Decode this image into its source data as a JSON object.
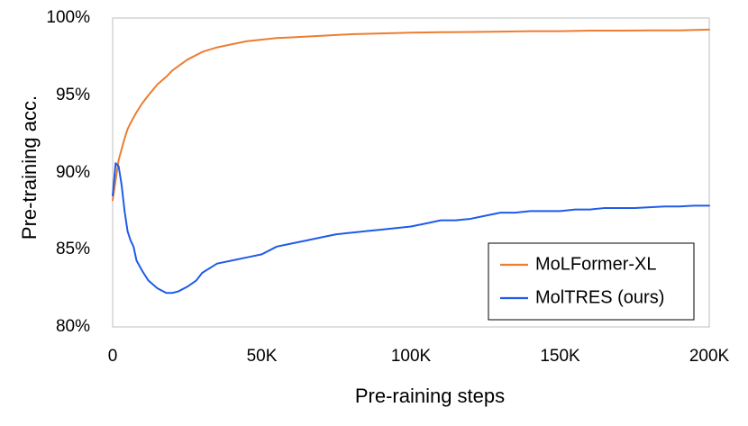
{
  "chart_data": {
    "type": "line",
    "title": "",
    "xlabel": "Pre-raining steps",
    "ylabel": "Pre-training  acc.",
    "xlim": [
      0,
      200000
    ],
    "ylim": [
      80,
      100
    ],
    "x_ticks": [
      0,
      50000,
      100000,
      150000,
      200000
    ],
    "x_tick_labels": [
      "0",
      "50K",
      "100K",
      "150K",
      "200K"
    ],
    "y_ticks": [
      80,
      85,
      90,
      95,
      100
    ],
    "y_tick_labels": [
      "80%",
      "85%",
      "90%",
      "95%",
      "100%"
    ],
    "grid": false,
    "legend_position": "bottom-right",
    "series": [
      {
        "name": "MoLFormer-XL",
        "color": "#ED7D31",
        "x": [
          0,
          1000,
          2000,
          3000,
          4000,
          5000,
          6000,
          8000,
          10000,
          12000,
          15000,
          18000,
          20000,
          25000,
          30000,
          35000,
          40000,
          45000,
          50000,
          55000,
          60000,
          70000,
          80000,
          90000,
          100000,
          110000,
          120000,
          130000,
          140000,
          150000,
          160000,
          170000,
          180000,
          190000,
          200000
        ],
        "y": [
          88.2,
          89.5,
          90.8,
          91.5,
          92.2,
          92.8,
          93.2,
          93.9,
          94.5,
          95.0,
          95.7,
          96.2,
          96.6,
          97.3,
          97.8,
          98.1,
          98.3,
          98.5,
          98.6,
          98.7,
          98.75,
          98.85,
          98.95,
          99.0,
          99.05,
          99.08,
          99.1,
          99.12,
          99.15,
          99.15,
          99.18,
          99.18,
          99.2,
          99.2,
          99.25
        ]
      },
      {
        "name": "MolTRES (ours)",
        "color": "#1F5BE8",
        "x": [
          0,
          1000,
          2000,
          3000,
          4000,
          5000,
          6000,
          7000,
          8000,
          10000,
          12000,
          15000,
          18000,
          20000,
          22000,
          25000,
          28000,
          30000,
          35000,
          40000,
          45000,
          50000,
          55000,
          60000,
          65000,
          70000,
          75000,
          80000,
          85000,
          90000,
          95000,
          100000,
          105000,
          110000,
          115000,
          120000,
          125000,
          130000,
          135000,
          140000,
          145000,
          150000,
          155000,
          160000,
          165000,
          170000,
          175000,
          180000,
          185000,
          190000,
          195000,
          200000
        ],
        "y": [
          88.5,
          90.6,
          90.4,
          89.2,
          87.5,
          86.2,
          85.6,
          85.2,
          84.3,
          83.6,
          83.0,
          82.5,
          82.2,
          82.2,
          82.3,
          82.6,
          83.0,
          83.5,
          84.1,
          84.3,
          84.5,
          84.7,
          85.2,
          85.4,
          85.6,
          85.8,
          86.0,
          86.1,
          86.2,
          86.3,
          86.4,
          86.5,
          86.7,
          86.9,
          86.9,
          87.0,
          87.2,
          87.4,
          87.4,
          87.5,
          87.5,
          87.5,
          87.6,
          87.6,
          87.7,
          87.7,
          87.7,
          87.75,
          87.8,
          87.8,
          87.85,
          87.85
        ]
      }
    ]
  }
}
